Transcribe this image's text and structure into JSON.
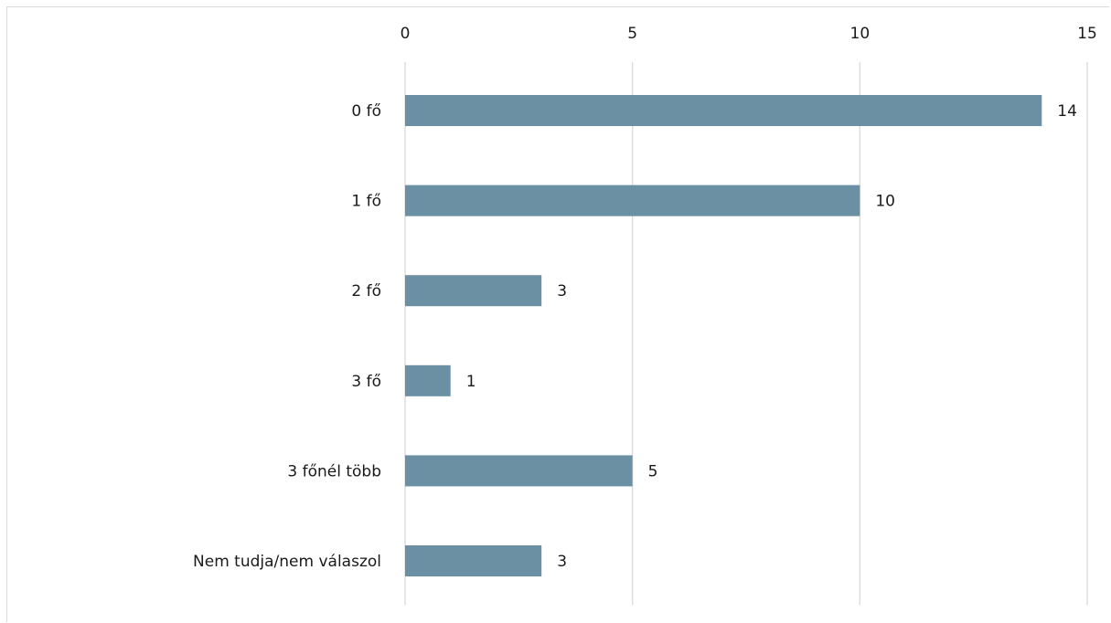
{
  "chart_data": {
    "type": "bar",
    "orientation": "horizontal",
    "categories": [
      "0 fő",
      "1 fő",
      "2 fő",
      "3 fő",
      "3 főnél több",
      "Nem tudja/nem válaszol"
    ],
    "values": [
      14,
      10,
      3,
      1,
      5,
      3
    ],
    "x_ticks": [
      0,
      5,
      10,
      15
    ],
    "xlim": [
      0,
      15
    ],
    "x_axis_position": "top",
    "grid": true,
    "data_labels": true,
    "bar_color": "#6b8fa3",
    "grid_color": "#d9d9d9"
  }
}
